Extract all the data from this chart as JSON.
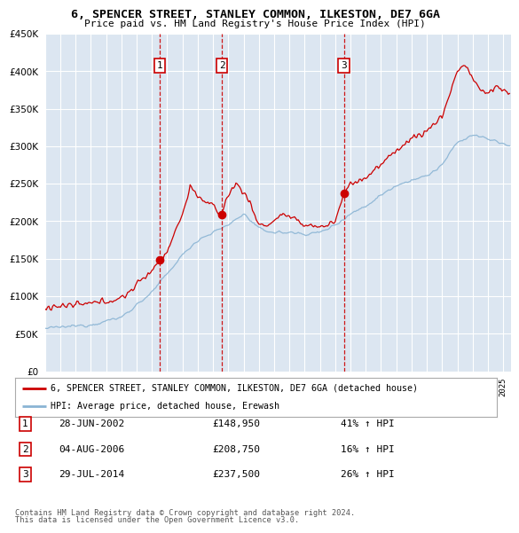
{
  "title1": "6, SPENCER STREET, STANLEY COMMON, ILKESTON, DE7 6GA",
  "title2": "Price paid vs. HM Land Registry's House Price Index (HPI)",
  "legend_property": "6, SPENCER STREET, STANLEY COMMON, ILKESTON, DE7 6GA (detached house)",
  "legend_hpi": "HPI: Average price, detached house, Erewash",
  "sales": [
    {
      "num": 1,
      "date": "28-JUN-2002",
      "price": 148950,
      "pct": "41%",
      "x_year": 2002.49
    },
    {
      "num": 2,
      "date": "04-AUG-2006",
      "price": 208750,
      "pct": "16%",
      "x_year": 2006.59
    },
    {
      "num": 3,
      "date": "29-JUL-2014",
      "price": 237500,
      "pct": "26%",
      "x_year": 2014.57
    }
  ],
  "footer1": "Contains HM Land Registry data © Crown copyright and database right 2024.",
  "footer2": "This data is licensed under the Open Government Licence v3.0.",
  "bg_color": "#dce6f1",
  "red_line_color": "#cc0000",
  "blue_line_color": "#8ab4d4",
  "grid_color": "#ffffff",
  "dashed_line_color": "#cc0000",
  "xmin": 1995.0,
  "xmax": 2025.5,
  "ymin": 0,
  "ymax": 450000
}
